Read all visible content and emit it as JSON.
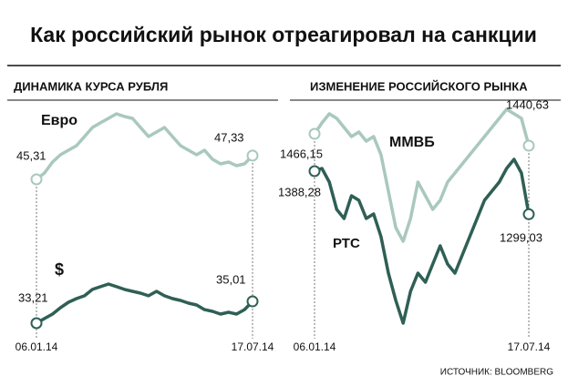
{
  "title": "Как российский рынок отреагировал на санкции",
  "source": "ИСТОЧНИК: BLOOMBERG",
  "chart_data": [
    {
      "type": "line",
      "title": "ДИНАМИКА КУРСА РУБЛЯ",
      "categories": [
        "06.01.14",
        null,
        null,
        null,
        null,
        null,
        null,
        null,
        null,
        null,
        null,
        null,
        null,
        null,
        null,
        null,
        null,
        null,
        null,
        null,
        null,
        null,
        null,
        null,
        null,
        null,
        null,
        "17.07.14"
      ],
      "series": [
        {
          "name": "Евро",
          "color": "#a9c8bf",
          "values": [
            45.31,
            45.85,
            46.78,
            47.4,
            47.79,
            48.18,
            48.95,
            49.73,
            50.12,
            50.5,
            50.89,
            50.66,
            50.5,
            49.73,
            48.95,
            49.34,
            49.73,
            48.95,
            48.18,
            47.79,
            47.4,
            47.79,
            47.02,
            46.63,
            46.78,
            46.47,
            46.63,
            47.33
          ],
          "value_labels": [
            "45,31",
            null,
            null,
            null,
            null,
            null,
            null,
            null,
            null,
            null,
            null,
            null,
            null,
            null,
            null,
            null,
            null,
            null,
            null,
            null,
            null,
            null,
            null,
            null,
            null,
            null,
            null,
            "47,33"
          ]
        },
        {
          "name": "$",
          "color": "#2f5f55",
          "values": [
            33.21,
            33.59,
            33.96,
            34.49,
            34.94,
            35.24,
            35.47,
            36.0,
            36.22,
            36.44,
            36.22,
            36.0,
            35.84,
            35.69,
            35.47,
            35.84,
            35.47,
            35.24,
            35.09,
            34.86,
            34.71,
            34.33,
            34.19,
            33.96,
            34.11,
            33.96,
            34.33,
            35.01
          ],
          "value_labels": [
            "33,21",
            null,
            null,
            null,
            null,
            null,
            null,
            null,
            null,
            null,
            null,
            null,
            null,
            null,
            null,
            null,
            null,
            null,
            null,
            null,
            null,
            null,
            null,
            null,
            null,
            null,
            null,
            "35,01"
          ]
        }
      ]
    },
    {
      "type": "line",
      "title": "ИЗМЕНЕНИЕ РОССИЙСКОГО РЫНКА",
      "categories": [
        "06.01.14",
        null,
        null,
        null,
        null,
        null,
        null,
        null,
        null,
        null,
        null,
        null,
        null,
        null,
        null,
        null,
        null,
        null,
        null,
        null,
        null,
        null,
        null,
        null,
        null,
        null,
        null,
        null,
        null,
        "17.07.14"
      ],
      "series": [
        {
          "name": "ММВБ",
          "color": "#a9c8bf",
          "values": [
            1466.15,
            1489.7,
            1509.3,
            1499.5,
            1479.9,
            1460.3,
            1470.1,
            1450.5,
            1460.3,
            1421.1,
            1342.6,
            1264.2,
            1234.8,
            1283.8,
            1362.2,
            1332.8,
            1303.4,
            1323.0,
            1362.2,
            1381.8,
            1401.5,
            1421.1,
            1440.6,
            1460.3,
            1479.9,
            1499.5,
            1519.1,
            1509.3,
            1499.5,
            1440.63
          ],
          "value_labels": [
            "1466,15",
            null,
            null,
            null,
            null,
            null,
            null,
            null,
            null,
            null,
            null,
            null,
            null,
            null,
            null,
            null,
            null,
            null,
            null,
            null,
            null,
            null,
            null,
            null,
            null,
            null,
            null,
            null,
            null,
            "1440,63"
          ]
        },
        {
          "name": "РТС",
          "color": "#2f5f55",
          "values": [
            1388.28,
            1393.9,
            1365.6,
            1309.0,
            1290.1,
            1337.3,
            1327.9,
            1290.1,
            1299.6,
            1252.4,
            1177.0,
            1120.4,
            1073.2,
            1139.2,
            1177.0,
            1158.1,
            1195.8,
            1233.6,
            1195.8,
            1177.0,
            1214.7,
            1252.4,
            1290.1,
            1327.9,
            1346.8,
            1365.6,
            1393.9,
            1412.8,
            1384.5,
            1299.03
          ],
          "value_labels": [
            "1388,28",
            null,
            null,
            null,
            null,
            null,
            null,
            null,
            null,
            null,
            null,
            null,
            null,
            null,
            null,
            null,
            null,
            null,
            null,
            null,
            null,
            null,
            null,
            null,
            null,
            null,
            null,
            null,
            null,
            "1299,03"
          ]
        }
      ]
    }
  ]
}
